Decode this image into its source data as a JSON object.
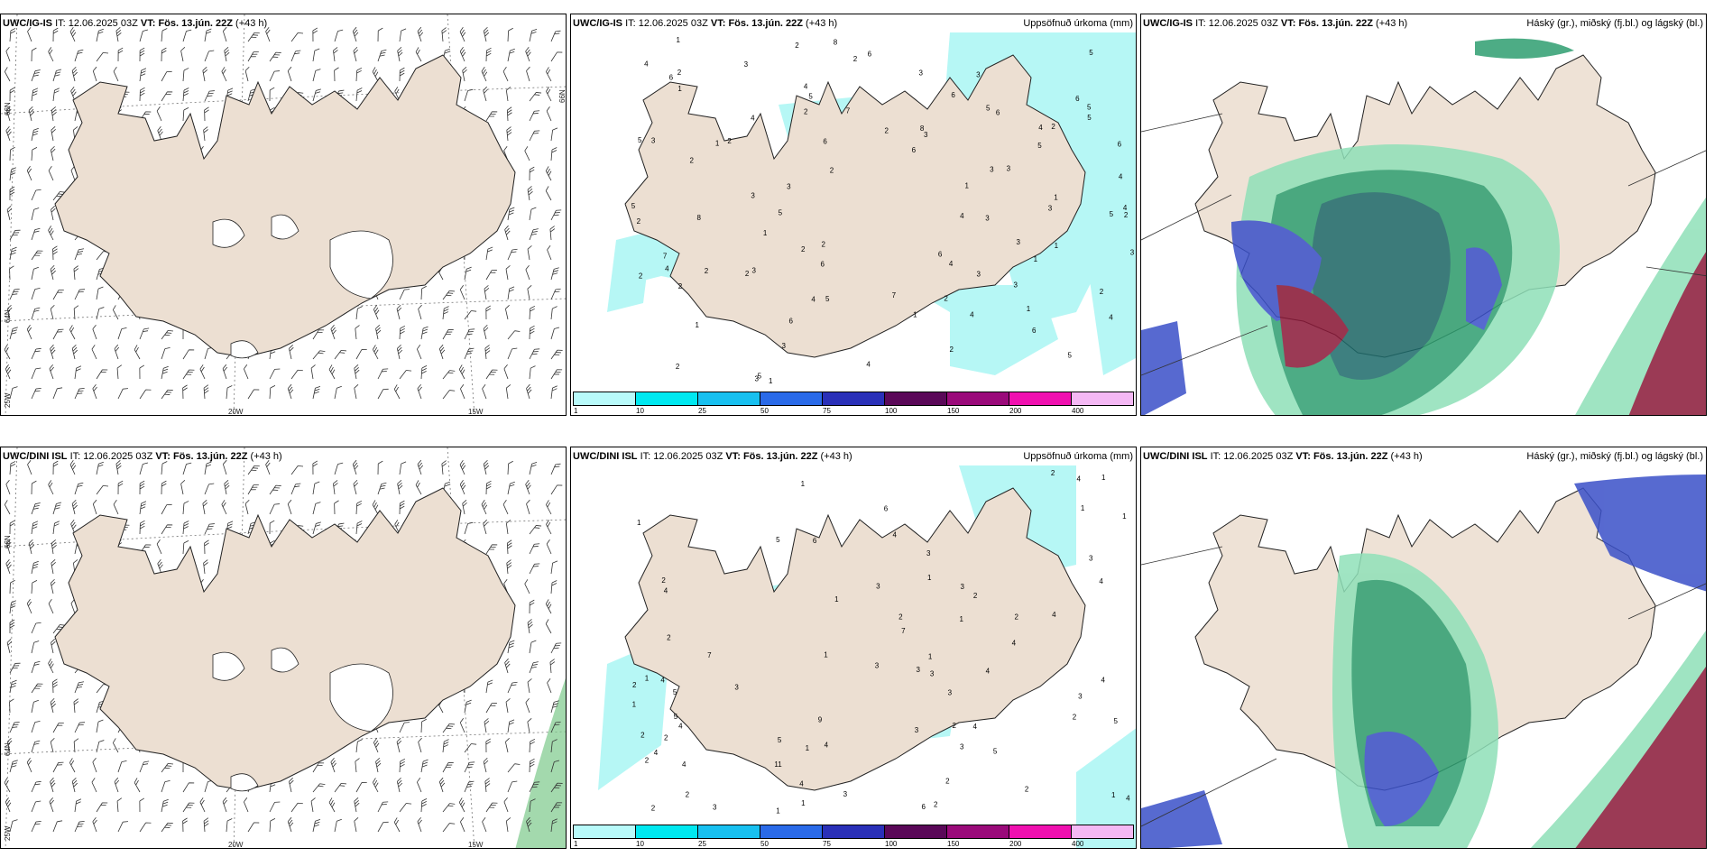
{
  "panels": {
    "p1": {
      "model": "UWC/IG-IS",
      "it_label": "IT:",
      "it": "12.06.2025 03Z",
      "vt_label": "VT:",
      "vt": "Fös. 13.jún. 22Z",
      "lead": "(+43 h)"
    },
    "p2": {
      "model": "UWC/IG-IS",
      "it_label": "IT:",
      "it": "12.06.2025 03Z",
      "vt_label": "VT:",
      "vt": "Fös. 13.jún. 22Z",
      "lead": "(+43 h)",
      "right_title": "Uppsöfnuð úrkoma (mm)"
    },
    "p3": {
      "model": "UWC/IG-IS",
      "it_label": "IT:",
      "it": "12.06.2025 03Z",
      "vt_label": "VT:",
      "vt": "Fös. 13.jún. 22Z",
      "lead": "(+43 h)",
      "right_title": "Háský (gr.), miðský (fj.bl.) og lágský (bl.)"
    },
    "p4": {
      "model": "UWC/DINI ISL",
      "it_label": "IT:",
      "it": "12.06.2025 03Z",
      "vt_label": "VT:",
      "vt": "Fös. 13.jún. 22Z",
      "lead": "(+43 h)"
    },
    "p5": {
      "model": "UWC/DINI ISL",
      "it_label": "IT:",
      "it": "12.06.2025 03Z",
      "vt_label": "VT:",
      "vt": "Fös. 13.jún. 22Z",
      "lead": "(+43 h)",
      "right_title": "Uppsöfnuð úrkoma (mm)"
    },
    "p6": {
      "model": "UWC/DINI ISL",
      "it_label": "IT:",
      "it": "12.06.2025 03Z",
      "vt_label": "VT:",
      "vt": "Fös. 13.jún. 22Z",
      "lead": "(+43 h)",
      "right_title": "Háský (gr.), miðský (fj.bl.) og lágský (bl.)"
    }
  },
  "grid_labels": {
    "lat66": "66N",
    "lat64": "64N",
    "lon20": "20W",
    "lon15": "15W",
    "lon25": "25W"
  },
  "colorbar": {
    "colors": [
      "#b8fafa",
      "#00e8f0",
      "#18c0f0",
      "#2a6ae8",
      "#2a30b8",
      "#5a0858",
      "#9a0a7a",
      "#f010b0",
      "#f4b8f4"
    ],
    "ticks": [
      "1",
      "10",
      "25",
      "50",
      "75",
      "100",
      "150",
      "200",
      "400"
    ]
  },
  "colors": {
    "land": "#ecdfd2",
    "precip": "#b6f7f5",
    "cloud_high": "#2e9e70",
    "cloud_mid": "#3a50c8",
    "cloud_low": "#8a1838"
  },
  "precip_labels_top": [
    "2",
    "5",
    "7",
    "3",
    "6",
    "2",
    "3",
    "5",
    "5",
    "6",
    "1",
    "3",
    "4",
    "2",
    "2",
    "7",
    "5",
    "2",
    "3",
    "4",
    "2",
    "1",
    "8",
    "3",
    "4",
    "2",
    "5",
    "2",
    "3",
    "6",
    "5",
    "1",
    "4",
    "5",
    "4",
    "6",
    "3",
    "1",
    "2",
    "3",
    "4",
    "2",
    "4",
    "6",
    "5",
    "3",
    "5",
    "6",
    "3",
    "3",
    "2",
    "6",
    "1",
    "4",
    "2",
    "3",
    "3",
    "3",
    "4",
    "6",
    "4",
    "3",
    "2",
    "1",
    "2",
    "3",
    "4",
    "2",
    "2",
    "6",
    "1",
    "8",
    "4",
    "5",
    "3",
    "7",
    "6",
    "2",
    "3",
    "5",
    "8",
    "5",
    "2",
    "6",
    "2",
    "1",
    "4",
    "1",
    "1",
    "1",
    "2",
    "1",
    "2",
    "5",
    "6"
  ],
  "precip_labels_bottom": [
    "3",
    "4",
    "4",
    "5",
    "3",
    "2",
    "3",
    "2",
    "1",
    "9",
    "5",
    "3",
    "4",
    "2",
    "2",
    "1",
    "3",
    "3",
    "2",
    "1",
    "2",
    "6",
    "3",
    "4",
    "4",
    "5",
    "11",
    "4",
    "6",
    "4",
    "5",
    "7",
    "4",
    "3",
    "4",
    "2",
    "3",
    "4",
    "2",
    "3",
    "6",
    "3",
    "5",
    "2",
    "2",
    "1",
    "2",
    "1",
    "1",
    "4",
    "3",
    "1",
    "2",
    "4",
    "1",
    "4",
    "2",
    "1",
    "2",
    "1",
    "3",
    "2",
    "4",
    "5",
    "7",
    "1",
    "1",
    "4",
    "1",
    "2",
    "1",
    "1",
    "3",
    "1",
    "2",
    "4"
  ]
}
